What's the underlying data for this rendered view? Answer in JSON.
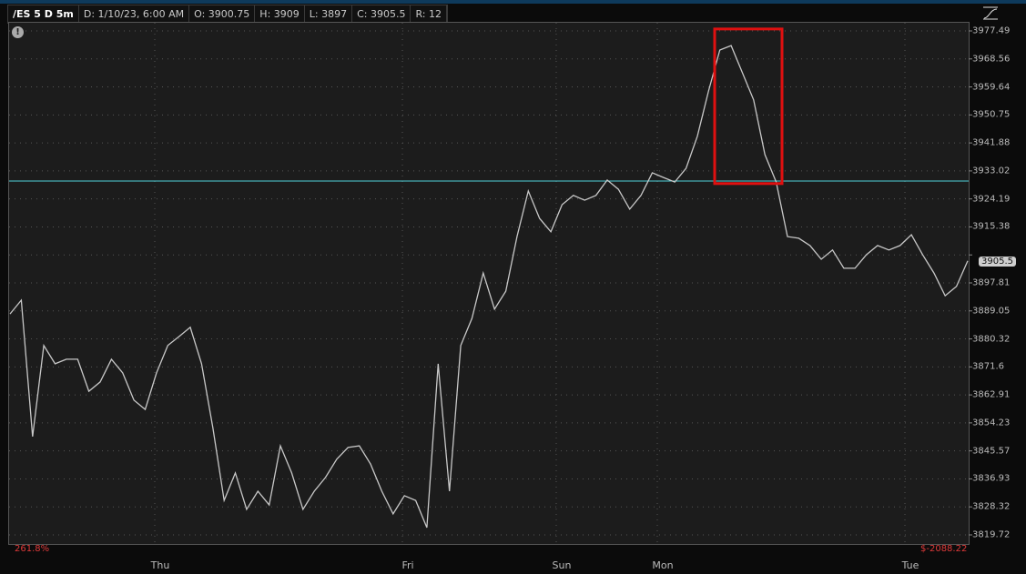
{
  "header": {
    "symbol": "/ES 5 D 5m",
    "date": "D: 1/10/23, 6:00 AM",
    "open": "O: 3900.75",
    "high": "H: 3909",
    "low": "L: 3897",
    "close": "C: 3905.5",
    "range": "R: 12"
  },
  "footer": {
    "percent": "261.8%",
    "pnl": "$-2088.22"
  },
  "icons": {
    "info": "info-icon",
    "chart_type": "line-chart-type-icon"
  },
  "colors": {
    "price_line": "#c8c8c8",
    "reference_line": "#4fd1d9",
    "highlight_box": "#e01010",
    "background": "#1c1c1c",
    "pnl_text": "#e03a3a"
  },
  "chart_data": {
    "type": "line",
    "title": "",
    "x_tick_labels": [
      "Thu",
      "Fri",
      "Sun",
      "Mon",
      "Tue"
    ],
    "y_tick_labels": [
      "3977.49",
      "3968.56",
      "3959.64",
      "3950.75",
      "3941.88",
      "3933.02",
      "3924.19",
      "3915.38",
      "3906.57",
      "3897.81",
      "3889.05",
      "3880.32",
      "3871.6",
      "3862.91",
      "3854.23",
      "3845.57",
      "3836.93",
      "3828.32",
      "3819.72"
    ],
    "ylim": [
      3819.72,
      3977.49
    ],
    "grid": true,
    "current_price_label": "3905.5",
    "reference_line_price": 3930.5,
    "highlight_box_price_range": [
      3929.7,
      3978.1
    ],
    "series": [
      {
        "values": [
          3888.9,
          3893.2,
          3850.5,
          3879.0,
          3873.3,
          3874.7,
          3874.7,
          3864.7,
          3867.6,
          3874.7,
          3870.4,
          3861.9,
          3859.0,
          3870.4,
          3879.0,
          3881.8,
          3884.7,
          3873.3,
          3853.3,
          3830.5,
          3839.1,
          3827.7,
          3833.4,
          3829.1,
          3847.6,
          3839.1,
          3827.7,
          3833.4,
          3837.7,
          3843.4,
          3847.1,
          3847.6,
          3841.9,
          3833.4,
          3826.3,
          3832.0,
          3830.5,
          3822.0,
          3873.3,
          3833.4,
          3879.0,
          3887.5,
          3901.7,
          3890.4,
          3896.0,
          3913.1,
          3927.4,
          3918.8,
          3914.6,
          3923.1,
          3926.0,
          3924.5,
          3926.0,
          3930.8,
          3927.9,
          3921.7,
          3926.0,
          3933.1,
          3931.6,
          3930.2,
          3934.5,
          3944.5,
          3958.7,
          3971.5,
          3972.9,
          3964.4,
          3955.9,
          3938.8,
          3930.2,
          3913.1,
          3912.6,
          3910.3,
          3906.0,
          3908.9,
          3903.2,
          3903.2,
          3907.4,
          3910.3,
          3908.9,
          3910.3,
          3913.7,
          3907.4,
          3901.7,
          3894.6,
          3897.5,
          3905.5
        ]
      }
    ]
  }
}
